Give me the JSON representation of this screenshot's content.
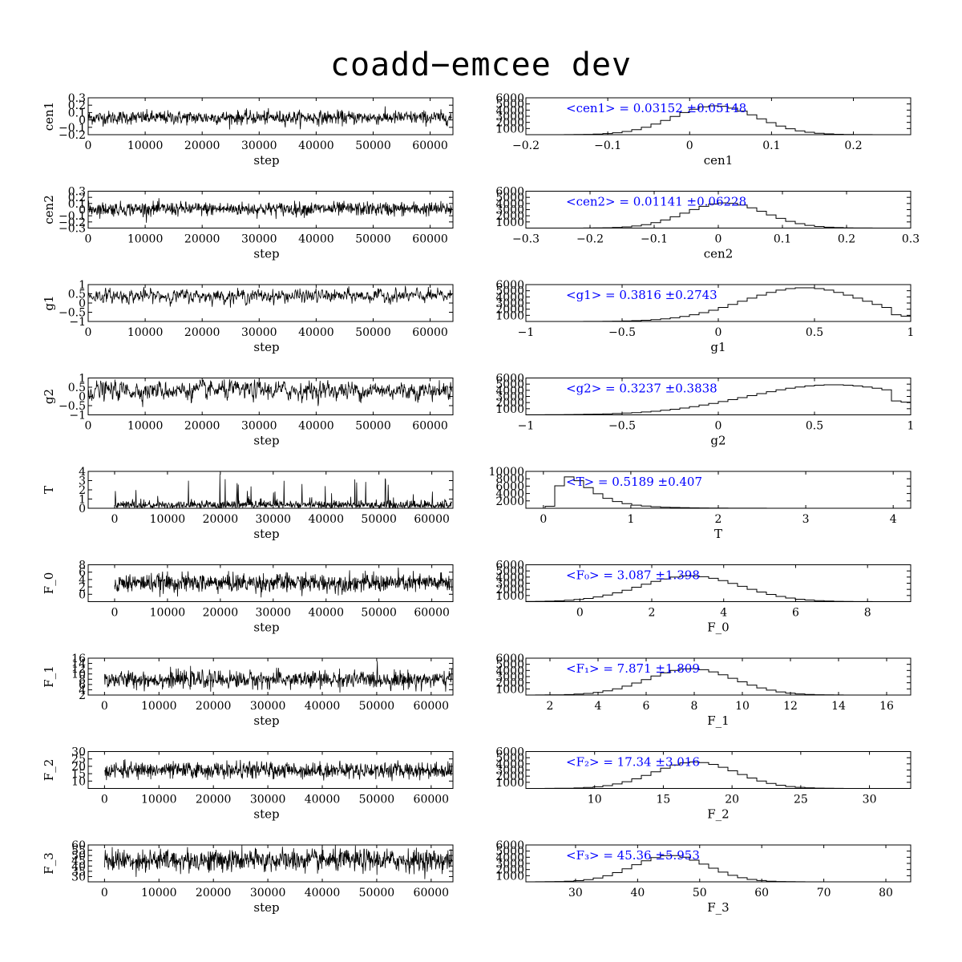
{
  "title": "coadd−emcee dev",
  "colors": {
    "trace": "#000000",
    "histogram": "#000000",
    "annotation": "#0000ff",
    "frame": "#000000"
  },
  "nsteps": 64000,
  "chart_data": [
    {
      "param": "cen1",
      "traces_type": "line",
      "trace": {
        "type": "line",
        "xlabel": "step",
        "ylabel": "cen1",
        "xlim": [
          0,
          64000
        ],
        "ylim": [
          -0.2,
          0.3
        ],
        "xticks": [
          0,
          10000,
          20000,
          30000,
          40000,
          50000,
          60000
        ],
        "yticks": [
          -0.2,
          -0.1,
          0,
          0.1,
          0.2,
          0.3
        ],
        "ytick_labels": [
          "−0.2",
          "−0.1",
          "0",
          "0.1",
          "0.2",
          "0.3"
        ],
        "mean": 0.03152,
        "sd": 0.05148
      },
      "histogram": {
        "type": "bar",
        "xlabel": "cen1",
        "xlim": [
          -0.2,
          0.27
        ],
        "ylim": [
          0,
          6000
        ],
        "xticks": [
          -0.2,
          -0.1,
          0,
          0.1,
          0.2
        ],
        "xtick_labels": [
          "−0.2",
          "−0.1",
          "0",
          "0.1",
          "0.2"
        ],
        "yticks": [
          1000,
          2000,
          3000,
          4000,
          5000,
          6000
        ],
        "ytick_labels": [
          "1000",
          "2000",
          "3000",
          "4000",
          "5000",
          "6000"
        ],
        "annotation": "<cen1> = 0.03152 ±0.05148",
        "peak": 4700,
        "mean": 0.03152,
        "sd": 0.05148
      }
    },
    {
      "param": "cen2",
      "trace": {
        "type": "line",
        "xlabel": "step",
        "ylabel": "cen2",
        "xlim": [
          0,
          64000
        ],
        "ylim": [
          -0.3,
          0.3
        ],
        "xticks": [
          0,
          10000,
          20000,
          30000,
          40000,
          50000,
          60000
        ],
        "yticks": [
          -0.3,
          -0.2,
          -0.1,
          0,
          0.1,
          0.2,
          0.3
        ],
        "ytick_labels": [
          "−0.3",
          "−0.2",
          "−0.1",
          "0",
          "0.1",
          "0.2",
          "0.3"
        ],
        "mean": 0.01141,
        "sd": 0.06228
      },
      "histogram": {
        "type": "bar",
        "xlabel": "cen2",
        "xlim": [
          -0.3,
          0.3
        ],
        "ylim": [
          0,
          6000
        ],
        "xticks": [
          -0.3,
          -0.2,
          -0.1,
          0,
          0.1,
          0.2,
          0.3
        ],
        "xtick_labels": [
          "−0.3",
          "−0.2",
          "−0.1",
          "0",
          "0.1",
          "0.2",
          "0.3"
        ],
        "yticks": [
          1000,
          2000,
          3000,
          4000,
          5000,
          6000
        ],
        "ytick_labels": [
          "1000",
          "2000",
          "3000",
          "4000",
          "5000",
          "6000"
        ],
        "annotation": "<cen2> = 0.01141 ±0.06228",
        "peak": 4100,
        "mean": 0.01141,
        "sd": 0.06228
      }
    },
    {
      "param": "g1",
      "trace": {
        "type": "line",
        "xlabel": "step",
        "ylabel": "g1",
        "xlim": [
          0,
          64000
        ],
        "ylim": [
          -1,
          1
        ],
        "xticks": [
          0,
          10000,
          20000,
          30000,
          40000,
          50000,
          60000
        ],
        "yticks": [
          -1,
          -0.5,
          0,
          0.5,
          1
        ],
        "ytick_labels": [
          "−1",
          "−0.5",
          "0",
          "0.5",
          "1"
        ],
        "mean": 0.3816,
        "sd": 0.2743
      },
      "histogram": {
        "type": "bar",
        "xlabel": "g1",
        "xlim": [
          -1,
          1
        ],
        "ylim": [
          0,
          6000
        ],
        "xticks": [
          -1,
          -0.5,
          0,
          0.5,
          1
        ],
        "xtick_labels": [
          "−1",
          "−0.5",
          "0",
          "0.5",
          "1"
        ],
        "yticks": [
          1000,
          2000,
          3000,
          4000,
          5000,
          6000
        ],
        "ytick_labels": [
          "1000",
          "2000",
          "3000",
          "4000",
          "5000",
          "6000"
        ],
        "annotation": "<g1> = 0.3816 ±0.2743",
        "peak": 5500,
        "mode": 0.45
      }
    },
    {
      "param": "g2",
      "trace": {
        "type": "line",
        "xlabel": "step",
        "ylabel": "g2",
        "xlim": [
          0,
          64000
        ],
        "ylim": [
          -1,
          1
        ],
        "xticks": [
          0,
          10000,
          20000,
          30000,
          40000,
          50000,
          60000
        ],
        "yticks": [
          -1,
          -0.5,
          0,
          0.5,
          1
        ],
        "ytick_labels": [
          "−1",
          "−0.5",
          "0",
          "0.5",
          "1"
        ],
        "mean": 0.3237,
        "sd": 0.3838
      },
      "histogram": {
        "type": "bar",
        "xlabel": "g2",
        "xlim": [
          -1,
          1
        ],
        "ylim": [
          0,
          6000
        ],
        "xticks": [
          -1,
          -0.5,
          0,
          0.5,
          1
        ],
        "xtick_labels": [
          "−1",
          "−0.5",
          "0",
          "0.5",
          "1"
        ],
        "yticks": [
          1000,
          2000,
          3000,
          4000,
          5000,
          6000
        ],
        "ytick_labels": [
          "1000",
          "2000",
          "3000",
          "4000",
          "5000",
          "6000"
        ],
        "annotation": "<g2> = 0.3237 ±0.3838",
        "peak": 4900,
        "mode": 0.6
      }
    },
    {
      "param": "T",
      "trace": {
        "type": "line",
        "xlabel": "step",
        "ylabel": "T",
        "xlim": [
          -5000,
          64000
        ],
        "ylim": [
          0,
          4
        ],
        "xticks": [
          0,
          10000,
          20000,
          30000,
          40000,
          50000,
          60000
        ],
        "yticks": [
          0,
          1,
          2,
          3,
          4
        ],
        "ytick_labels": [
          "0",
          "1",
          "2",
          "3",
          "4"
        ],
        "mean": 0.5189,
        "sd": 0.407
      },
      "histogram": {
        "type": "bar",
        "xlabel": "T",
        "xlim": [
          -0.2,
          4.2
        ],
        "ylim": [
          0,
          10000
        ],
        "xticks": [
          0,
          1,
          2,
          3,
          4
        ],
        "xtick_labels": [
          "0",
          "1",
          "2",
          "3",
          "4"
        ],
        "yticks": [
          2000,
          4000,
          6000,
          8000,
          10000
        ],
        "ytick_labels": [
          "2000",
          "4000",
          "6000",
          "8000",
          "10000"
        ],
        "annotation": "<T> = 0.5189 ±0.407",
        "peak": 8500,
        "mode": 0.3
      }
    },
    {
      "param": "F_0",
      "trace": {
        "type": "line",
        "xlabel": "step",
        "ylabel": "F_0",
        "xlim": [
          -5000,
          64000
        ],
        "ylim": [
          -2,
          8
        ],
        "xticks": [
          0,
          10000,
          20000,
          30000,
          40000,
          50000,
          60000
        ],
        "yticks": [
          0,
          2,
          4,
          6,
          8
        ],
        "ytick_labels": [
          "0",
          "2",
          "4",
          "6",
          "8"
        ],
        "mean": 3.087,
        "sd": 1.398
      },
      "histogram": {
        "type": "bar",
        "xlabel": "F_0",
        "xlim": [
          -1.5,
          9.2
        ],
        "ylim": [
          0,
          6000
        ],
        "xticks": [
          0,
          2,
          4,
          6,
          8
        ],
        "xtick_labels": [
          "0",
          "2",
          "4",
          "6",
          "8"
        ],
        "yticks": [
          1000,
          2000,
          3000,
          4000,
          5000,
          6000
        ],
        "ytick_labels": [
          "1000",
          "2000",
          "3000",
          "4000",
          "5000",
          "6000"
        ],
        "annotation": "<F₀> = 3.087 ±1.398",
        "peak": 4200,
        "mean": 3.087,
        "sd": 1.398
      }
    },
    {
      "param": "F_1",
      "trace": {
        "type": "line",
        "xlabel": "step",
        "ylabel": "F_1",
        "xlim": [
          -3000,
          64000
        ],
        "ylim": [
          2,
          16
        ],
        "xticks": [
          0,
          10000,
          20000,
          30000,
          40000,
          50000,
          60000
        ],
        "yticks": [
          2,
          4,
          6,
          8,
          10,
          12,
          14,
          16
        ],
        "ytick_labels": [
          "2",
          "4",
          "6",
          "8",
          "10",
          "12",
          "14",
          "16"
        ],
        "mean": 7.871,
        "sd": 1.809
      },
      "histogram": {
        "type": "bar",
        "xlabel": "F_1",
        "xlim": [
          1,
          17
        ],
        "ylim": [
          0,
          6000
        ],
        "xticks": [
          2,
          4,
          6,
          8,
          10,
          12,
          14,
          16
        ],
        "xtick_labels": [
          "2",
          "4",
          "6",
          "8",
          "10",
          "12",
          "14",
          "16"
        ],
        "yticks": [
          1000,
          2000,
          3000,
          4000,
          5000,
          6000
        ],
        "ytick_labels": [
          "1000",
          "2000",
          "3000",
          "4000",
          "5000",
          "6000"
        ],
        "annotation": "<F₁> = 7.871 ±1.809",
        "peak": 4300,
        "mean": 7.871,
        "sd": 1.809
      }
    },
    {
      "param": "F_2",
      "trace": {
        "type": "line",
        "xlabel": "step",
        "ylabel": "F_2",
        "xlim": [
          -3000,
          64000
        ],
        "ylim": [
          5,
          30
        ],
        "xticks": [
          0,
          10000,
          20000,
          30000,
          40000,
          50000,
          60000
        ],
        "yticks": [
          10,
          15,
          20,
          25,
          30
        ],
        "ytick_labels": [
          "10",
          "15",
          "20",
          "25",
          "30"
        ],
        "mean": 17.34,
        "sd": 3.016
      },
      "histogram": {
        "type": "bar",
        "xlabel": "F_2",
        "xlim": [
          5,
          33
        ],
        "ylim": [
          0,
          6000
        ],
        "xticks": [
          10,
          15,
          20,
          25,
          30
        ],
        "xtick_labels": [
          "10",
          "15",
          "20",
          "25",
          "30"
        ],
        "yticks": [
          1000,
          2000,
          3000,
          4000,
          5000,
          6000
        ],
        "ytick_labels": [
          "1000",
          "2000",
          "3000",
          "4000",
          "5000",
          "6000"
        ],
        "annotation": "<F₂> = 17.34 ±3.016",
        "peak": 4300,
        "mean": 17.34,
        "sd": 3.016
      }
    },
    {
      "param": "F_3",
      "trace": {
        "type": "line",
        "xlabel": "step",
        "ylabel": "F_3",
        "xlim": [
          -3000,
          64000
        ],
        "ylim": [
          25,
          60
        ],
        "xticks": [
          0,
          10000,
          20000,
          30000,
          40000,
          50000,
          60000
        ],
        "yticks": [
          30,
          35,
          40,
          45,
          50,
          55,
          60
        ],
        "ytick_labels": [
          "30",
          "35",
          "40",
          "45",
          "50",
          "55",
          "60"
        ],
        "mean": 45.36,
        "sd": 5.953
      },
      "histogram": {
        "type": "bar",
        "xlabel": "F_3",
        "xlim": [
          22,
          84
        ],
        "ylim": [
          0,
          6000
        ],
        "xticks": [
          30,
          40,
          50,
          60,
          70,
          80
        ],
        "xtick_labels": [
          "30",
          "40",
          "50",
          "60",
          "70",
          "80"
        ],
        "yticks": [
          1000,
          2000,
          3000,
          4000,
          5000,
          6000
        ],
        "ytick_labels": [
          "1000",
          "2000",
          "3000",
          "4000",
          "5000",
          "6000"
        ],
        "annotation": "<F₃> = 45.36 ±5.953",
        "peak": 4300,
        "mean": 45.36,
        "sd": 5.953
      }
    }
  ]
}
